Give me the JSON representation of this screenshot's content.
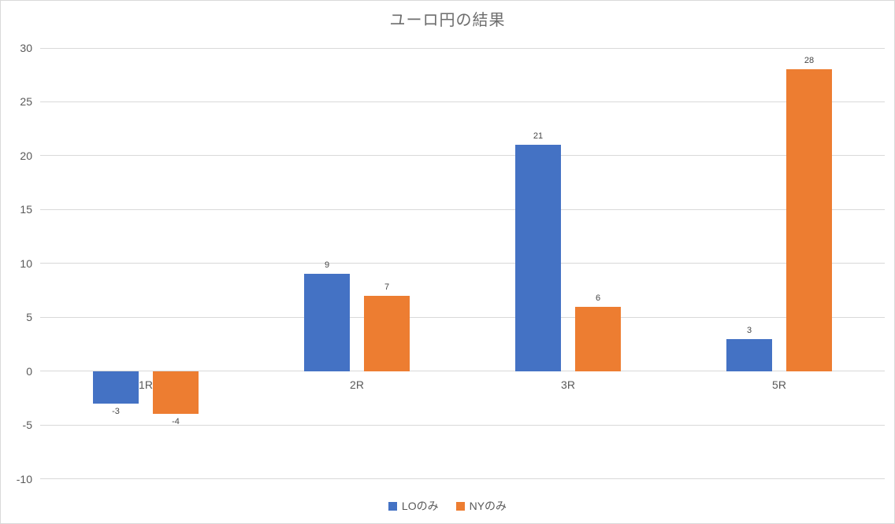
{
  "chart_data": {
    "type": "bar",
    "title": "ユーロ円の結果",
    "categories": [
      "1R",
      "2R",
      "3R",
      "5R"
    ],
    "series": [
      {
        "name": "LOのみ",
        "color": "#4472C4",
        "values": [
          -3,
          9,
          21,
          3
        ]
      },
      {
        "name": "NYのみ",
        "color": "#ED7D31",
        "values": [
          -4,
          7,
          6,
          28
        ]
      }
    ],
    "xlabel": "",
    "ylabel": "",
    "ylim": [
      -10,
      30
    ],
    "y_tick_step": 5,
    "grid": true,
    "legend_position": "bottom",
    "data_labels": true
  },
  "colors": {
    "background": "#FFFFFF",
    "border": "#D9D9D9",
    "gridline": "#D9D9D9",
    "axis_text": "#595959",
    "title_text": "#6D6D6D",
    "data_label_text": "#464646"
  }
}
